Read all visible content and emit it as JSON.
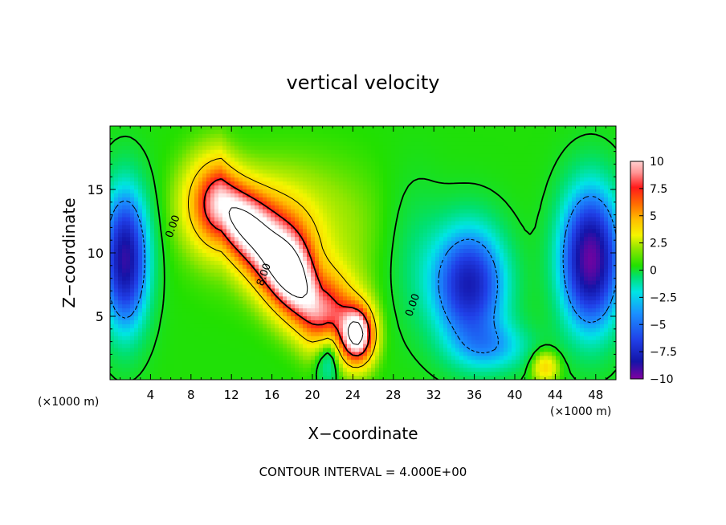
{
  "chart_data": {
    "type": "heatmap",
    "title": "vertical velocity",
    "xlabel": "X−coordinate",
    "ylabel": "Z−coordinate",
    "x_unit_left": "(×1000 m)",
    "x_unit_right": "(×1000 m)",
    "footer": "CONTOUR INTERVAL = 4.000E+00",
    "xlim": [
      0,
      50
    ],
    "ylim": [
      0,
      20
    ],
    "x_ticks": [
      4,
      8,
      12,
      16,
      20,
      24,
      28,
      32,
      36,
      40,
      44,
      48
    ],
    "x_tick_labels": [
      "4",
      "8",
      "12",
      "16",
      "20",
      "24",
      "28",
      "32",
      "36",
      "40",
      "44",
      "48"
    ],
    "y_ticks": [
      5,
      10,
      15
    ],
    "y_tick_labels": [
      "5",
      "10",
      "15"
    ],
    "colorbar": {
      "range": [
        -10,
        10
      ],
      "ticks": [
        10,
        7.5,
        5,
        2.5,
        0,
        -2.5,
        -5,
        -7.5,
        -10
      ],
      "tick_labels": [
        "10",
        "7.5",
        "5",
        "2.5",
        "0",
        "−2.5",
        "−5",
        "−7.5",
        "−10"
      ],
      "colors": [
        "#8000a0",
        "#1414a8",
        "#2040e8",
        "#1a90ff",
        "#00e5e5",
        "#00e070",
        "#22e000",
        "#90e600",
        "#f5f500",
        "#ffc000",
        "#ff7000",
        "#ff1a1a",
        "#ff9898",
        "#ffffff"
      ]
    },
    "contour_labels": [
      {
        "text": "0.00",
        "x": 6.5,
        "y": 12.0
      },
      {
        "text": "8.00",
        "x": 15.5,
        "y": 8.2
      },
      {
        "text": "0.00",
        "x": 30.2,
        "y": 5.8
      }
    ],
    "features": [
      {
        "kind": "updraft",
        "x": 17.5,
        "z": 9.5,
        "peak": 12
      },
      {
        "kind": "updraft",
        "x": 24.5,
        "z": 3.5,
        "peak": 10
      },
      {
        "kind": "downdraft",
        "x": 1.5,
        "z": 9.5,
        "peak": -8
      },
      {
        "kind": "downdraft",
        "x": 35.0,
        "z": 7.5,
        "peak": -8
      },
      {
        "kind": "downdraft",
        "x": 47.0,
        "z": 9.5,
        "peak": -9
      }
    ]
  }
}
